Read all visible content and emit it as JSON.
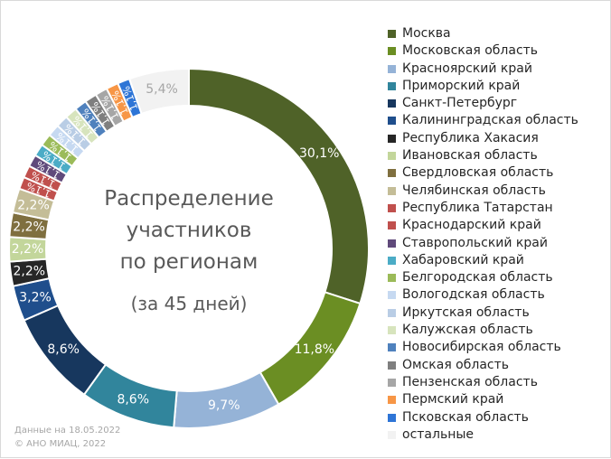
{
  "chart_data": {
    "type": "pie",
    "title": "Распределение участников по регионам",
    "title_lines": [
      "Распределение",
      "участников",
      "по регионам"
    ],
    "subtitle": "(за 45 дней)",
    "legend_position": "right",
    "series": [
      {
        "name": "Москва",
        "value": 30.1,
        "label": "30,1%",
        "color": "#4f6228"
      },
      {
        "name": "Московская область",
        "value": 11.8,
        "label": "11,8%",
        "color": "#6b8e23"
      },
      {
        "name": "Красноярский край",
        "value": 9.7,
        "label": "9,7%",
        "color": "#95b3d7"
      },
      {
        "name": "Приморский край",
        "value": 8.6,
        "label": "8,6%",
        "color": "#31859c"
      },
      {
        "name": "Санкт-Петербург",
        "value": 8.6,
        "label": "8,6%",
        "color": "#17375e"
      },
      {
        "name": "Калининградская область",
        "value": 3.2,
        "label": "3,2%",
        "color": "#1f4e8c"
      },
      {
        "name": "Республика Хакасия",
        "value": 2.2,
        "label": "2,2%",
        "color": "#262626"
      },
      {
        "name": "Ивановская область",
        "value": 2.2,
        "label": "2,2%",
        "color": "#c3d69b"
      },
      {
        "name": "Свердловская область",
        "value": 2.2,
        "label": "2,2%",
        "color": "#7f6f3f"
      },
      {
        "name": "Челябинская область",
        "value": 2.2,
        "label": "2,2%",
        "color": "#c4bd97"
      },
      {
        "name": "Республика Татарстан",
        "value": 1.1,
        "label": "1,1%",
        "color": "#c0504d"
      },
      {
        "name": "Краснодарский край",
        "value": 1.1,
        "label": "1,1%",
        "color": "#c0504d"
      },
      {
        "name": "Ставропольский край",
        "value": 1.1,
        "label": "1,1%",
        "color": "#604a7b"
      },
      {
        "name": "Хабаровский край",
        "value": 1.1,
        "label": "1,1%",
        "color": "#4bacc6"
      },
      {
        "name": "Белгородская область",
        "value": 1.1,
        "label": "1,1%",
        "color": "#9bbb59"
      },
      {
        "name": "Вологодская область",
        "value": 1.1,
        "label": "1,1%",
        "color": "#c6d9f1"
      },
      {
        "name": "Иркутская область",
        "value": 1.1,
        "label": "1,1%",
        "color": "#b9cde5"
      },
      {
        "name": "Калужская область",
        "value": 1.1,
        "label": "1,1%",
        "color": "#d7e4bd"
      },
      {
        "name": "Новосибирская область",
        "value": 1.1,
        "label": "1,1%",
        "color": "#4f81bd"
      },
      {
        "name": "Омская область",
        "value": 1.1,
        "label": "1,1%",
        "color": "#7f7f7f"
      },
      {
        "name": "Пензенская область",
        "value": 1.1,
        "label": "1,1%",
        "color": "#a6a6a6"
      },
      {
        "name": "Пермский край",
        "value": 1.1,
        "label": "1,1%",
        "color": "#f79646"
      },
      {
        "name": "Псковская область",
        "value": 1.1,
        "label": "1,1%",
        "color": "#2e75d6"
      },
      {
        "name": "остальные",
        "value": 5.4,
        "label": "5,4%",
        "color": "#f2f2f2"
      }
    ]
  },
  "footer": {
    "line1": "Данные на 18.05.2022",
    "line2": "© АНО МИАЦ, 2022"
  }
}
